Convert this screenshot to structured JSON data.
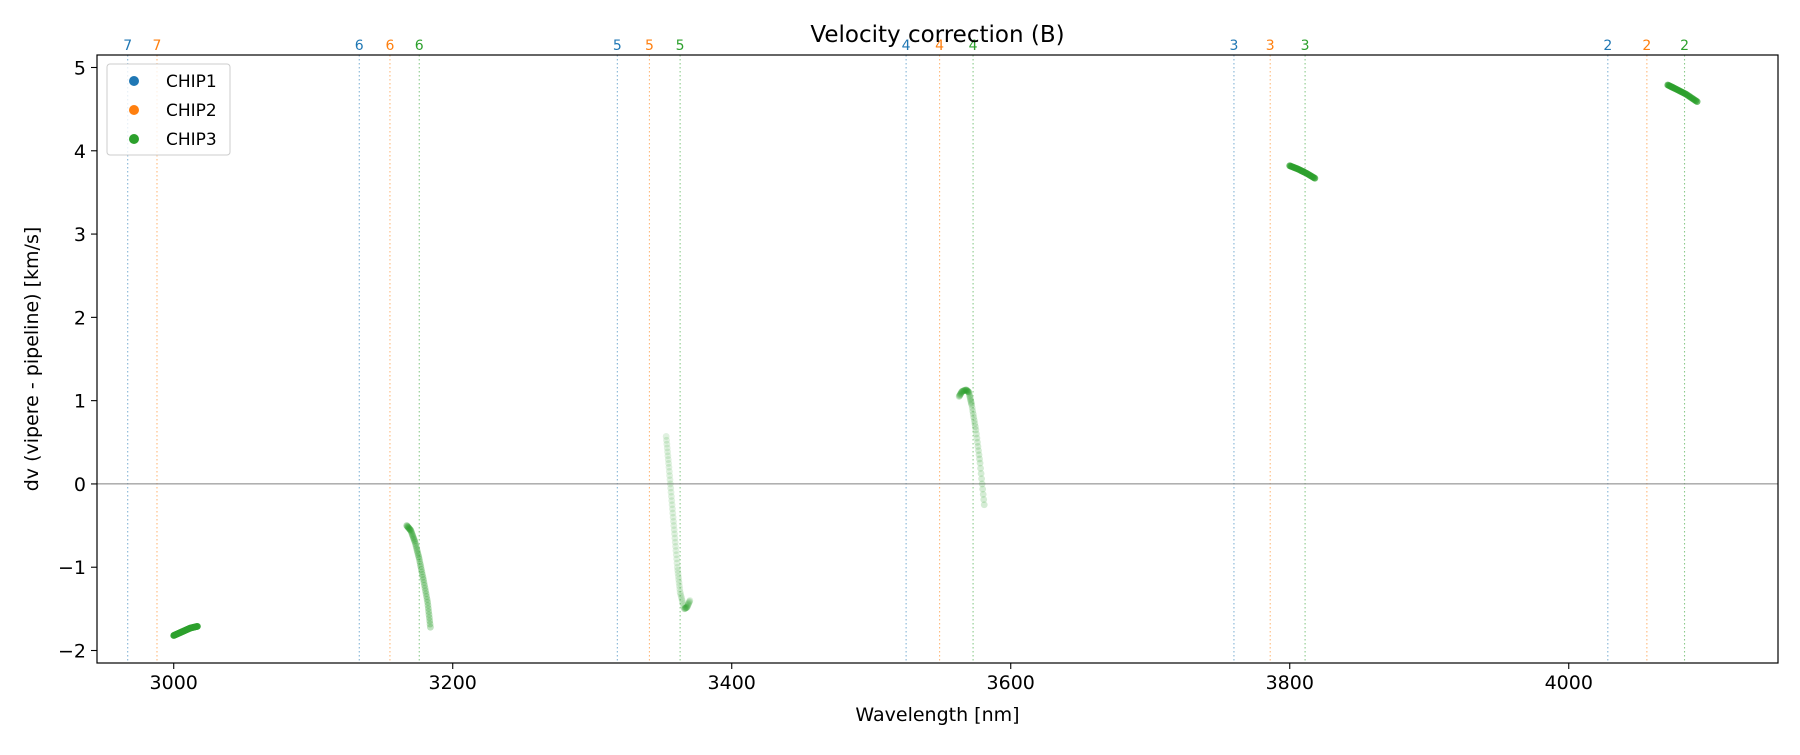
{
  "chart_data": {
    "type": "scatter",
    "title": "Velocity correction (B)",
    "xlabel": "Wavelength [nm]",
    "ylabel": "dv (vipere - pipeline) [km/s]",
    "xlim": [
      2945,
      4150
    ],
    "ylim": [
      -2.15,
      5.15
    ],
    "xticks": [
      3000,
      3200,
      3400,
      3600,
      3800,
      4000
    ],
    "yticks": [
      -2,
      -1,
      0,
      1,
      2,
      3,
      4,
      5
    ],
    "grid": false,
    "legend": {
      "placement": "upper-left",
      "entries": [
        {
          "label": "CHIP1",
          "color": "#1f77b4"
        },
        {
          "label": "CHIP2",
          "color": "#ff7f0e"
        },
        {
          "label": "CHIP3",
          "color": "#2ca02c"
        }
      ]
    },
    "zero_line": {
      "y": 0,
      "color": "#808080"
    },
    "order_lines": [
      {
        "order": "7",
        "chip": "CHIP1",
        "x": 2967,
        "color": "#1f77b4"
      },
      {
        "order": "7",
        "chip": "CHIP2",
        "x": 2988,
        "color": "#ff7f0e"
      },
      {
        "order": "6",
        "chip": "CHIP1",
        "x": 3133,
        "color": "#1f77b4"
      },
      {
        "order": "6",
        "chip": "CHIP2",
        "x": 3155,
        "color": "#ff7f0e"
      },
      {
        "order": "6",
        "chip": "CHIP3",
        "x": 3176,
        "color": "#2ca02c"
      },
      {
        "order": "5",
        "chip": "CHIP1",
        "x": 3318,
        "color": "#1f77b4"
      },
      {
        "order": "5",
        "chip": "CHIP2",
        "x": 3341,
        "color": "#ff7f0e"
      },
      {
        "order": "5",
        "chip": "CHIP3",
        "x": 3363,
        "color": "#2ca02c"
      },
      {
        "order": "4",
        "chip": "CHIP1",
        "x": 3525,
        "color": "#1f77b4"
      },
      {
        "order": "4",
        "chip": "CHIP2",
        "x": 3549,
        "color": "#ff7f0e"
      },
      {
        "order": "4",
        "chip": "CHIP3",
        "x": 3573,
        "color": "#2ca02c"
      },
      {
        "order": "3",
        "chip": "CHIP1",
        "x": 3760,
        "color": "#1f77b4"
      },
      {
        "order": "3",
        "chip": "CHIP2",
        "x": 3786,
        "color": "#ff7f0e"
      },
      {
        "order": "3",
        "chip": "CHIP3",
        "x": 3811,
        "color": "#2ca02c"
      },
      {
        "order": "2",
        "chip": "CHIP1",
        "x": 4028,
        "color": "#1f77b4"
      },
      {
        "order": "2",
        "chip": "CHIP2",
        "x": 4056,
        "color": "#ff7f0e"
      },
      {
        "order": "2",
        "chip": "CHIP3",
        "x": 4083,
        "color": "#2ca02c"
      }
    ],
    "series": [
      {
        "name": "CHIP3",
        "color": "#2ca02c",
        "segments": [
          {
            "order": "7",
            "opacity": 0.9,
            "points": [
              [
                3000,
                -1.82
              ],
              [
                3004,
                -1.79
              ],
              [
                3008,
                -1.76
              ],
              [
                3012,
                -1.73
              ],
              [
                3017,
                -1.71
              ]
            ]
          },
          {
            "order": "6",
            "opacity": 0.3,
            "points": [
              [
                3167,
                -0.5
              ],
              [
                3170,
                -0.56
              ],
              [
                3173,
                -0.7
              ],
              [
                3176,
                -0.9
              ],
              [
                3179,
                -1.15
              ],
              [
                3182,
                -1.42
              ],
              [
                3184,
                -1.72
              ]
            ]
          },
          {
            "order": "5",
            "opacity": 0.15,
            "points": [
              [
                3353,
                0.57
              ],
              [
                3355,
                0.2
              ],
              [
                3357,
                -0.2
              ],
              [
                3359,
                -0.6
              ],
              [
                3361,
                -1.0
              ],
              [
                3363,
                -1.3
              ],
              [
                3366,
                -1.5
              ],
              [
                3368,
                -1.48
              ],
              [
                3370,
                -1.4
              ]
            ]
          },
          {
            "order": "4",
            "opacity": 0.2,
            "points": [
              [
                3563,
                1.05
              ],
              [
                3565,
                1.11
              ],
              [
                3568,
                1.13
              ],
              [
                3570,
                1.1
              ],
              [
                3572,
                0.95
              ],
              [
                3575,
                0.65
              ],
              [
                3578,
                0.25
              ],
              [
                3581,
                -0.25
              ]
            ]
          },
          {
            "order": "3",
            "opacity": 0.7,
            "points": [
              [
                3800,
                3.82
              ],
              [
                3806,
                3.78
              ],
              [
                3812,
                3.73
              ],
              [
                3818,
                3.67
              ]
            ]
          },
          {
            "order": "2",
            "opacity": 0.7,
            "points": [
              [
                4071,
                4.79
              ],
              [
                4077,
                4.74
              ],
              [
                4084,
                4.68
              ],
              [
                4092,
                4.59
              ]
            ]
          }
        ]
      }
    ]
  }
}
